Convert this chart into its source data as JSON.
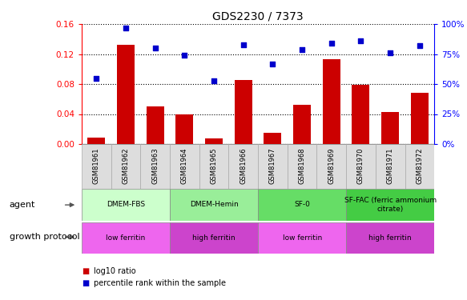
{
  "title": "GDS2230 / 7373",
  "samples": [
    "GSM81961",
    "GSM81962",
    "GSM81963",
    "GSM81964",
    "GSM81965",
    "GSM81966",
    "GSM81967",
    "GSM81968",
    "GSM81969",
    "GSM81970",
    "GSM81971",
    "GSM81972"
  ],
  "log10_ratio": [
    0.009,
    0.132,
    0.05,
    0.04,
    0.008,
    0.085,
    0.015,
    0.052,
    0.113,
    0.079,
    0.043,
    0.068
  ],
  "percentile_rank": [
    55,
    97,
    80,
    74,
    53,
    83,
    67,
    79,
    84,
    86,
    76,
    82
  ],
  "bar_color": "#cc0000",
  "dot_color": "#0000cc",
  "ylim_left": [
    0,
    0.16
  ],
  "ylim_right": [
    0,
    100
  ],
  "yticks_left": [
    0,
    0.04,
    0.08,
    0.12,
    0.16
  ],
  "yticks_right": [
    0,
    25,
    50,
    75,
    100
  ],
  "agent_groups": [
    {
      "label": "DMEM-FBS",
      "start": 0,
      "end": 2,
      "color": "#ccffcc"
    },
    {
      "label": "DMEM-Hemin",
      "start": 3,
      "end": 5,
      "color": "#99ee99"
    },
    {
      "label": "SF-0",
      "start": 6,
      "end": 8,
      "color": "#66dd66"
    },
    {
      "label": "SF-FAC (ferric ammonium\ncitrate)",
      "start": 9,
      "end": 11,
      "color": "#44cc44"
    }
  ],
  "growth_groups": [
    {
      "label": "low ferritin",
      "start": 0,
      "end": 2,
      "color": "#ee66ee"
    },
    {
      "label": "high ferritin",
      "start": 3,
      "end": 5,
      "color": "#cc44cc"
    },
    {
      "label": "low ferritin",
      "start": 6,
      "end": 8,
      "color": "#ee66ee"
    },
    {
      "label": "high ferritin",
      "start": 9,
      "end": 11,
      "color": "#cc44cc"
    }
  ],
  "legend_bar_label": "log10 ratio",
  "legend_dot_label": "percentile rank within the sample"
}
